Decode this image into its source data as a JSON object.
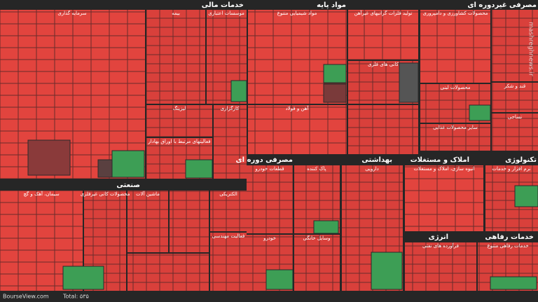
{
  "sectors": [
    {
      "title": "خدمات مالی",
      "groups": [
        "سرمایه گذاری",
        "بیمه",
        "موسسات اعتباری",
        "لیزینگ",
        "کارگزاری",
        "فعالیتهای مرتبط با اوراق بهادار"
      ]
    },
    {
      "title": "مواد پایه",
      "groups": [
        "مواد شیمیایی متنوع",
        "تولید فلزات گرانبهای غیرآهن",
        "کانی های فلزی",
        "آهن و فولاد"
      ]
    },
    {
      "title": "مصرفی غیردوره ای",
      "groups": [
        "محصولات کشاورزی و دامپروری",
        "محصولات لبنی",
        "سایر محصولات غذایی",
        "قند و شکر",
        "نساجی"
      ]
    },
    {
      "title": "صنعتی",
      "groups": [
        "سیمان، آهک و گچ",
        "محصولات کانی غیرفلزی",
        "ماشین آلات",
        "الکتریکی",
        "فعالیت مهندسی"
      ]
    },
    {
      "title": "مصرفی دوره ای",
      "groups": [
        "قطعات خودرو",
        "پاک کننده",
        "وسایل خانگی",
        "خودرو"
      ]
    },
    {
      "title": "بهداشتی",
      "groups": [
        "دارویی"
      ]
    },
    {
      "title": "املاک و مستغلات",
      "groups": [
        "انبوه سازی، املاک و مستغلات"
      ]
    },
    {
      "title": "تکنولوژی",
      "groups": [
        "نرم افزار و خدمات"
      ]
    },
    {
      "title": "انرژی",
      "groups": [
        "فرآورده های نفتی"
      ]
    },
    {
      "title": "خدمات رفاهی",
      "groups": [
        "خدمات رفاهی متنوع"
      ]
    }
  ],
  "footer": {
    "source": "BourseView.com",
    "total": "Total: ۵۳۵"
  },
  "watermark": "mashreghnews.ir"
}
